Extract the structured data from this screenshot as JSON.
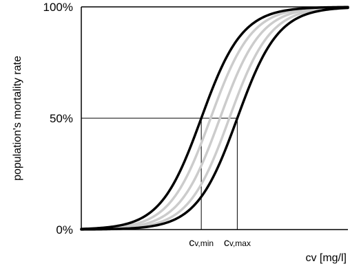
{
  "chart_data": {
    "type": "line",
    "title": "",
    "xlabel": "cv [mg/l]",
    "ylabel": "population's mortality rate",
    "xlim": [
      0,
      1
    ],
    "ylim": [
      0,
      100
    ],
    "y_ticks": [
      {
        "value": 0,
        "label": "0%"
      },
      {
        "value": 50,
        "label": "50%"
      },
      {
        "value": 100,
        "label": "100%"
      }
    ],
    "x_markers": [
      {
        "value": 0.45,
        "base": "c",
        "sub": "v,min"
      },
      {
        "value": 0.585,
        "base": "c",
        "sub": "v,max"
      }
    ],
    "grid": false,
    "legend": "none",
    "series": [
      {
        "midpoint": 0.45,
        "steepness": 13,
        "color": "#000000"
      },
      {
        "midpoint": 0.485,
        "steepness": 13,
        "color": "#cccccc"
      },
      {
        "midpoint": 0.52,
        "steepness": 13,
        "color": "#cccccc"
      },
      {
        "midpoint": 0.555,
        "steepness": 13,
        "color": "#cccccc"
      },
      {
        "midpoint": 0.585,
        "steepness": 13,
        "color": "#000000"
      }
    ]
  }
}
